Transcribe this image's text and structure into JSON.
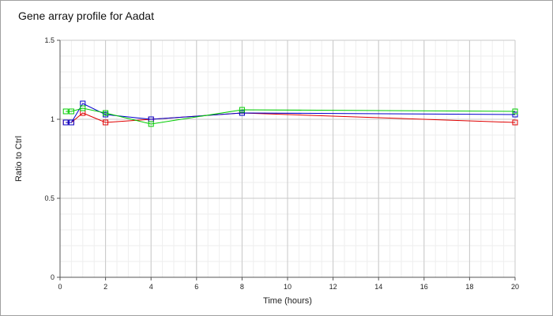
{
  "chart_data": {
    "type": "line",
    "title": "Gene array profile for Aadat",
    "xlabel": "Time (hours)",
    "ylabel": "Ratio to Ctrl",
    "xlim": [
      0,
      20
    ],
    "ylim": [
      0,
      1.5
    ],
    "x_ticks": [
      "0",
      "2",
      "4",
      "6",
      "8",
      "10",
      "12",
      "14",
      "16",
      "18",
      "20"
    ],
    "y_ticks": [
      "0",
      "0.5",
      "1",
      "1.5"
    ],
    "grid": true,
    "legend": "none",
    "series": [
      {
        "color": "#e00000",
        "marker": "square",
        "x": [
          0.25,
          0.5,
          1,
          2,
          4,
          8,
          20
        ],
        "y": [
          0.98,
          0.98,
          1.04,
          0.98,
          1.0,
          1.04,
          0.98
        ]
      },
      {
        "color": "#0000cc",
        "marker": "square",
        "x": [
          0.25,
          0.5,
          1,
          2,
          4,
          8,
          20
        ],
        "y": [
          0.98,
          0.98,
          1.1,
          1.03,
          1.0,
          1.04,
          1.03
        ]
      },
      {
        "color": "#00cc00",
        "marker": "square",
        "x": [
          0.25,
          0.5,
          1,
          2,
          4,
          8,
          20
        ],
        "y": [
          1.05,
          1.05,
          1.07,
          1.04,
          0.97,
          1.06,
          1.05
        ]
      }
    ]
  }
}
